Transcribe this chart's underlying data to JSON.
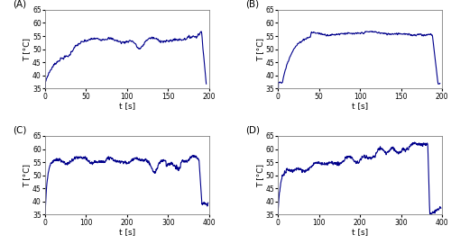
{
  "panels": [
    {
      "label": "A",
      "xlabel": "t [s]",
      "ylabel": "T [°C]",
      "xlim": [
        0,
        200
      ],
      "ylim": [
        35,
        65
      ],
      "xticks": [
        0,
        50,
        100,
        150,
        200
      ],
      "yticks": [
        35,
        40,
        45,
        50,
        55,
        60,
        65
      ]
    },
    {
      "label": "B",
      "xlabel": "t [s]",
      "ylabel": "T [°C]",
      "xlim": [
        0,
        200
      ],
      "ylim": [
        35,
        65
      ],
      "xticks": [
        0,
        50,
        100,
        150,
        200
      ],
      "yticks": [
        35,
        40,
        45,
        50,
        55,
        60,
        65
      ]
    },
    {
      "label": "C",
      "xlabel": "t [s]",
      "ylabel": "T [°C]",
      "xlim": [
        0,
        400
      ],
      "ylim": [
        35,
        65
      ],
      "xticks": [
        0,
        100,
        200,
        300,
        400
      ],
      "yticks": [
        35,
        40,
        45,
        50,
        55,
        60,
        65
      ]
    },
    {
      "label": "D",
      "xlabel": "t [s]",
      "ylabel": "T [°C]",
      "xlim": [
        0,
        400
      ],
      "ylim": [
        35,
        65
      ],
      "xticks": [
        0,
        100,
        200,
        300,
        400
      ],
      "yticks": [
        35,
        40,
        45,
        50,
        55,
        60,
        65
      ]
    }
  ],
  "line_color": "#00008B",
  "line_width": 0.8,
  "bg_color": "#ffffff"
}
